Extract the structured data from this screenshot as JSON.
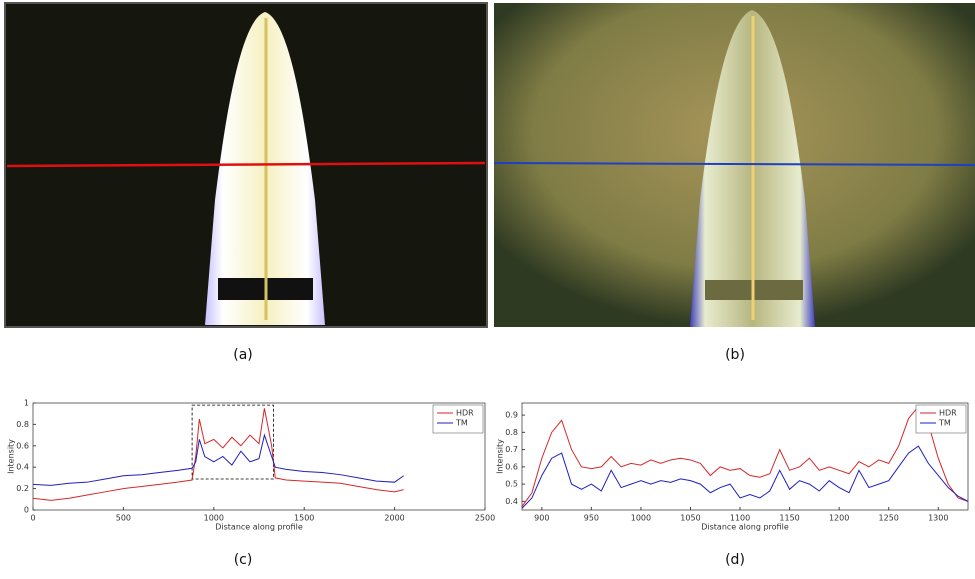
{
  "captions": [
    "(a)",
    "(b)",
    "(c)",
    "(d)"
  ],
  "chart_data": [
    {
      "type": "line",
      "xlabel": "Distance along profile",
      "ylabel": "Intensity",
      "x": [
        0,
        100,
        200,
        300,
        400,
        500,
        600,
        700,
        800,
        880,
        900,
        920,
        950,
        1000,
        1050,
        1100,
        1150,
        1200,
        1250,
        1280,
        1320,
        1340,
        1400,
        1500,
        1600,
        1700,
        1800,
        1900,
        2000,
        2050
      ],
      "series": [
        {
          "name": "HDR",
          "color": "#d62728",
          "values": [
            0.11,
            0.09,
            0.11,
            0.14,
            0.17,
            0.2,
            0.22,
            0.24,
            0.26,
            0.28,
            0.5,
            0.85,
            0.62,
            0.66,
            0.58,
            0.68,
            0.6,
            0.7,
            0.62,
            0.95,
            0.6,
            0.3,
            0.28,
            0.27,
            0.26,
            0.25,
            0.22,
            0.19,
            0.17,
            0.19
          ]
        },
        {
          "name": "TM",
          "color": "#1f1fbf",
          "values": [
            0.24,
            0.23,
            0.25,
            0.26,
            0.29,
            0.32,
            0.33,
            0.35,
            0.37,
            0.39,
            0.45,
            0.66,
            0.5,
            0.45,
            0.5,
            0.42,
            0.55,
            0.45,
            0.48,
            0.7,
            0.5,
            0.4,
            0.38,
            0.36,
            0.35,
            0.33,
            0.3,
            0.27,
            0.26,
            0.32
          ]
        }
      ],
      "xlim": [
        0,
        2500
      ],
      "xticks": [
        0,
        500,
        1000,
        1500,
        2000,
        2500
      ],
      "ylim": [
        0,
        1
      ],
      "yticks": [
        0,
        0.2,
        0.4,
        0.6,
        0.8,
        1
      ],
      "highlight": {
        "xlim": [
          880,
          1330
        ],
        "ylim": [
          0.29,
          0.98
        ]
      },
      "legend": "upper right"
    },
    {
      "type": "line",
      "xlabel": "Distance along profile",
      "ylabel": "Intensity",
      "x": [
        880,
        890,
        900,
        910,
        920,
        930,
        940,
        950,
        960,
        970,
        980,
        990,
        1000,
        1010,
        1020,
        1030,
        1040,
        1050,
        1060,
        1070,
        1080,
        1090,
        1100,
        1110,
        1120,
        1130,
        1140,
        1150,
        1160,
        1170,
        1180,
        1190,
        1200,
        1210,
        1220,
        1230,
        1240,
        1250,
        1260,
        1270,
        1280,
        1290,
        1300,
        1310,
        1320,
        1330
      ],
      "series": [
        {
          "name": "HDR",
          "color": "#d62728",
          "values": [
            0.37,
            0.45,
            0.65,
            0.8,
            0.87,
            0.7,
            0.6,
            0.59,
            0.6,
            0.66,
            0.6,
            0.62,
            0.61,
            0.64,
            0.62,
            0.64,
            0.65,
            0.64,
            0.62,
            0.55,
            0.6,
            0.58,
            0.59,
            0.55,
            0.54,
            0.56,
            0.7,
            0.58,
            0.6,
            0.65,
            0.58,
            0.6,
            0.58,
            0.56,
            0.63,
            0.6,
            0.64,
            0.62,
            0.72,
            0.88,
            0.95,
            0.85,
            0.65,
            0.5,
            0.42,
            0.4
          ]
        },
        {
          "name": "TM",
          "color": "#1f1fbf",
          "values": [
            0.36,
            0.42,
            0.55,
            0.65,
            0.68,
            0.5,
            0.47,
            0.5,
            0.46,
            0.58,
            0.48,
            0.5,
            0.52,
            0.5,
            0.52,
            0.51,
            0.53,
            0.52,
            0.5,
            0.45,
            0.48,
            0.5,
            0.42,
            0.44,
            0.42,
            0.46,
            0.58,
            0.47,
            0.52,
            0.5,
            0.46,
            0.52,
            0.48,
            0.45,
            0.58,
            0.48,
            0.5,
            0.52,
            0.6,
            0.68,
            0.72,
            0.62,
            0.55,
            0.48,
            0.43,
            0.4
          ]
        }
      ],
      "xlim": [
        880,
        1330
      ],
      "xticks": [
        900,
        950,
        1000,
        1050,
        1100,
        1150,
        1200,
        1250,
        1300
      ],
      "ylim": [
        0.35,
        0.97
      ],
      "yticks": [
        0.4,
        0.5,
        0.6,
        0.7,
        0.8,
        0.9
      ],
      "legend": "upper right"
    }
  ]
}
